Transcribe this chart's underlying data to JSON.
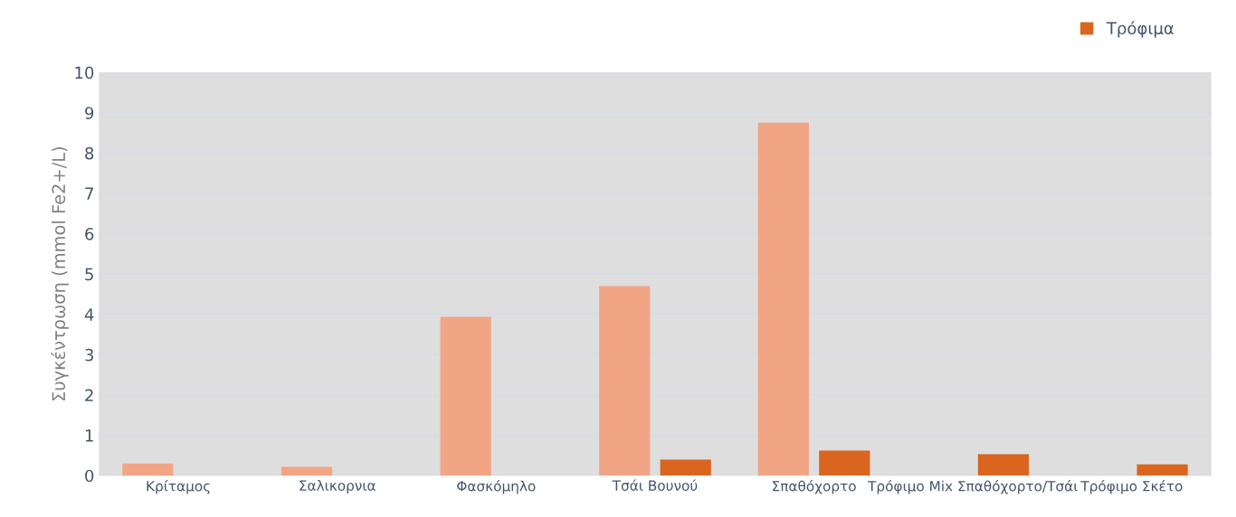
{
  "chart_data": {
    "type": "bar",
    "ylabel": "Συγκέντρωση (mmol Fe2+/L)",
    "categories": [
      "Κρίταμος",
      "Σαλικορνια",
      "Φασκόμηλο",
      "Τσάι Βουνού",
      "Σπαθόχορτο",
      "Τρόφιμο Mix Σπαθόχορτο/Τσάι",
      "Τρόφιμο Σκέτο"
    ],
    "series": [
      {
        "color": "#f2a585",
        "values": [
          0.3,
          0.22,
          3.94,
          4.7,
          8.75,
          null,
          null
        ]
      },
      {
        "name": "Τρόφιμα",
        "color": "#d9651f",
        "values": [
          null,
          null,
          null,
          0.4,
          0.62,
          0.53,
          0.28
        ]
      }
    ],
    "ylim": [
      0,
      10
    ],
    "yticks": [
      0,
      1,
      2,
      3,
      4,
      5,
      6,
      7,
      8,
      9,
      10
    ],
    "grid": "y",
    "legend": "top right"
  }
}
